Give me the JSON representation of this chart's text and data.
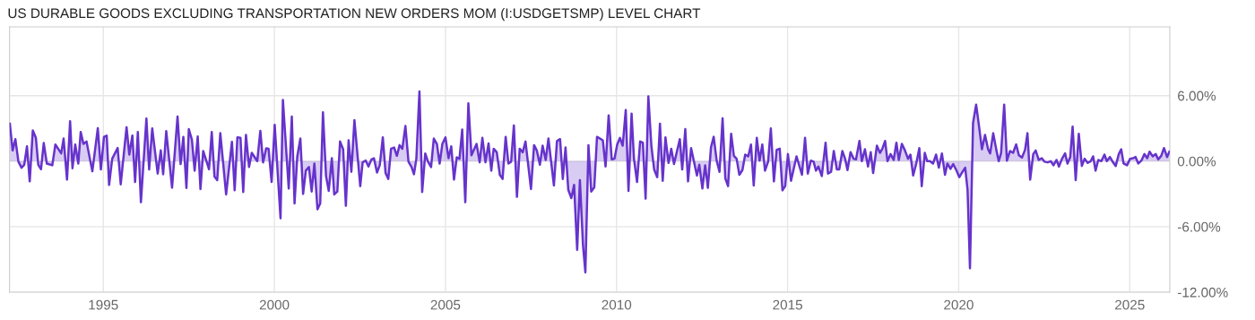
{
  "chart_data": {
    "type": "area",
    "title": "US DURABLE GOODS EXCLUDING TRANSPORTATION NEW ORDERS MOM (I:USDGETSMP) LEVEL CHART",
    "x": [
      1992.27,
      1992.35,
      1992.43,
      1992.52,
      1992.61,
      1992.69,
      1992.77,
      1992.85,
      1992.94,
      1993.03,
      1993.1,
      1993.18,
      1993.26,
      1993.35,
      1993.51,
      1993.6,
      1993.77,
      1993.84,
      1993.94,
      1994.03,
      1994.1,
      1994.18,
      1994.27,
      1994.34,
      1994.42,
      1994.51,
      1994.68,
      1994.84,
      1994.93,
      1995.02,
      1995.1,
      1995.17,
      1995.26,
      1995.42,
      1995.51,
      1995.68,
      1995.76,
      1995.85,
      1995.93,
      1996.01,
      1996.1,
      1996.26,
      1996.34,
      1996.43,
      1996.59,
      1996.68,
      1996.75,
      1996.84,
      1997.01,
      1997.17,
      1997.26,
      1997.34,
      1997.43,
      1997.5,
      1997.59,
      1997.67,
      1997.76,
      1997.84,
      1997.92,
      1998.09,
      1998.17,
      1998.25,
      1998.33,
      1998.42,
      1998.59,
      1998.76,
      1998.84,
      1998.92,
      1999.01,
      1999.09,
      1999.17,
      1999.26,
      1999.34,
      1999.5,
      1999.59,
      1999.67,
      1999.76,
      1999.83,
      1999.92,
      2000.01,
      2000.18,
      2000.25,
      2000.42,
      2000.51,
      2000.59,
      2000.67,
      2000.76,
      2000.84,
      2000.92,
      2001.01,
      2001.09,
      2001.17,
      2001.26,
      2001.34,
      2001.42,
      2001.51,
      2001.59,
      2001.68,
      2001.75,
      2001.84,
      2001.92,
      2002.01,
      2002.09,
      2002.17,
      2002.25,
      2002.34,
      2002.51,
      2002.58,
      2002.67,
      2002.75,
      2002.84,
      2002.91,
      2003.0,
      2003.08,
      2003.17,
      2003.25,
      2003.33,
      2003.41,
      2003.5,
      2003.58,
      2003.66,
      2003.74,
      2003.83,
      2003.92,
      2004.01,
      2004.08,
      2004.15,
      2004.24,
      2004.32,
      2004.41,
      2004.49,
      2004.58,
      2004.66,
      2004.75,
      2004.83,
      2004.91,
      2005.0,
      2005.09,
      2005.17,
      2005.25,
      2005.33,
      2005.41,
      2005.49,
      2005.58,
      2005.67,
      2005.76,
      2005.91,
      2006.0,
      2006.08,
      2006.17,
      2006.26,
      2006.34,
      2006.41,
      2006.5,
      2006.59,
      2006.67,
      2006.76,
      2006.84,
      2006.92,
      2007.0,
      2007.09,
      2007.17,
      2007.26,
      2007.34,
      2007.5,
      2007.59,
      2007.67,
      2007.76,
      2007.84,
      2007.93,
      2008.01,
      2008.17,
      2008.26,
      2008.35,
      2008.43,
      2008.51,
      2008.59,
      2008.68,
      2008.76,
      2008.85,
      2008.93,
      2009.02,
      2009.09,
      2009.18,
      2009.26,
      2009.35,
      2009.43,
      2009.6,
      2009.68,
      2009.77,
      2009.86,
      2009.94,
      2010.02,
      2010.1,
      2010.18,
      2010.27,
      2010.35,
      2010.44,
      2010.51,
      2010.6,
      2010.69,
      2010.77,
      2010.85,
      2010.93,
      2011.02,
      2011.1,
      2011.19,
      2011.27,
      2011.35,
      2011.43,
      2011.52,
      2011.6,
      2011.68,
      2011.85,
      2011.92,
      2012.01,
      2012.09,
      2012.18,
      2012.35,
      2012.42,
      2012.51,
      2012.59,
      2012.67,
      2012.76,
      2012.84,
      2012.93,
      2013.01,
      2013.1,
      2013.18,
      2013.26,
      2013.35,
      2013.43,
      2013.51,
      2013.59,
      2013.68,
      2013.76,
      2013.85,
      2013.93,
      2014.01,
      2014.1,
      2014.18,
      2014.26,
      2014.34,
      2014.43,
      2014.51,
      2014.6,
      2014.68,
      2014.77,
      2014.85,
      2014.93,
      2015.01,
      2015.1,
      2015.26,
      2015.42,
      2015.51,
      2015.59,
      2015.68,
      2015.76,
      2015.83,
      2015.9,
      2016.0,
      2016.11,
      2016.18,
      2016.27,
      2016.35,
      2016.44,
      2016.51,
      2016.6,
      2016.68,
      2016.75,
      2016.84,
      2016.93,
      2017.0,
      2017.1,
      2017.17,
      2017.26,
      2017.35,
      2017.43,
      2017.5,
      2017.61,
      2017.7,
      2017.77,
      2017.85,
      2017.92,
      2018.01,
      2018.1,
      2018.18,
      2018.25,
      2018.34,
      2018.43,
      2018.52,
      2018.59,
      2018.67,
      2018.76,
      2018.85,
      2018.92,
      2019.01,
      2019.08,
      2019.16,
      2019.25,
      2019.34,
      2019.42,
      2019.51,
      2019.6,
      2019.67,
      2019.76,
      2019.84,
      2019.93,
      2020.02,
      2020.1,
      2020.19,
      2020.26,
      2020.33,
      2020.42,
      2020.51,
      2020.59,
      2020.68,
      2020.77,
      2020.86,
      2020.92,
      2021.01,
      2021.1,
      2021.17,
      2021.24,
      2021.33,
      2021.41,
      2021.5,
      2021.59,
      2021.68,
      2021.76,
      2021.85,
      2021.94,
      2022.01,
      2022.09,
      2022.18,
      2022.25,
      2022.34,
      2022.43,
      2022.51,
      2022.6,
      2022.69,
      2022.77,
      2022.86,
      2022.93,
      2023.02,
      2023.11,
      2023.18,
      2023.26,
      2023.33,
      2023.42,
      2023.51,
      2023.6,
      2023.68,
      2023.77,
      2023.86,
      2023.93,
      2024.0,
      2024.08,
      2024.17,
      2024.26,
      2024.33,
      2024.42,
      2024.5,
      2024.59,
      2024.68,
      2024.75,
      2024.82,
      2024.92,
      2025.01,
      2025.1,
      2025.17,
      2025.25,
      2025.34,
      2025.43,
      2025.51,
      2025.58,
      2025.67,
      2025.76,
      2025.83,
      2025.92,
      2026.0,
      2026.09,
      2026.16
    ],
    "values": [
      3.43,
      0.98,
      2.02,
      -0.05,
      -0.6,
      -0.33,
      1.36,
      -1.85,
      2.81,
      2.13,
      -0.33,
      -0.74,
      1.66,
      -0.22,
      -0.38,
      1.53,
      0.71,
      2.07,
      -1.69,
      3.65,
      -0.65,
      1.53,
      -0.22,
      2.67,
      1.58,
      1.8,
      -0.93,
      3.02,
      -0.76,
      2.23,
      2.34,
      -2.18,
      0.22,
      1.2,
      -2.13,
      3.11,
      0.6,
      2.34,
      -1.91,
      2.67,
      -3.76,
      3.9,
      -0.76,
      3.0,
      -1.14,
      0.98,
      -1.2,
      2.75,
      -2.43,
      4.09,
      -0.27,
      2.23,
      -2.45,
      2.94,
      1.96,
      -0.87,
      2.26,
      -2.56,
      0.93,
      -0.74,
      2.67,
      -1.42,
      -1.74,
      2.56,
      -3.05,
      1.77,
      -2.67,
      2.18,
      2.13,
      -2.83,
      2.4,
      -0.54,
      0.76,
      0,
      2.78,
      -0.11,
      1.17,
      1.14,
      -1.91,
      3.32,
      -5.23,
      5.61,
      -2.51,
      4.09,
      -3.87,
      0.44,
      2.07,
      -3.0,
      -0.87,
      -0.54,
      -2.78,
      -0.22,
      -4.41,
      -3.87,
      4.47,
      -1.36,
      -2.72,
      0.27,
      -3.05,
      -2.78,
      1.8,
      1.09,
      -4.09,
      1.91,
      -0.98,
      3.76,
      -2.29,
      -0.11,
      0.05,
      -0.49,
      0.16,
      0.27,
      -1.04,
      -0.38,
      2.18,
      -1.09,
      -1.63,
      1.14,
      1.25,
      0.49,
      1.47,
      1.14,
      3.22,
      -0.05,
      -0.54,
      -1.2,
      0.22,
      6.38,
      -2.83,
      0.71,
      -0.05,
      -0.54,
      2.07,
      1.58,
      -0.22,
      1.58,
      2.18,
      0.27,
      1.36,
      -1.69,
      0.35,
      0.22,
      2.89,
      -3.76,
      5.29,
      0.54,
      1.58,
      -0.11,
      2.13,
      -0.11,
      1.63,
      -0.87,
      1.14,
      0.82,
      -1.25,
      -1.63,
      2.23,
      -0.22,
      -0.05,
      3.27,
      -3.27,
      1.14,
      0.82,
      1.8,
      -2.56,
      1.47,
      0.98,
      -0.33,
      1.42,
      0.11,
      2.07,
      -2.23,
      1.85,
      2.02,
      -1.63,
      1.25,
      -2.62,
      -3.38,
      -2.18,
      -8.12,
      -1.74,
      -7.68,
      -10.19,
      1.47,
      -2.78,
      -2.4,
      2.23,
      1.91,
      -0.49,
      4.2,
      0.16,
      0.22,
      1.53,
      2.13,
      1.42,
      4.69,
      -2.72,
      4.36,
      0.22,
      -1.91,
      1.8,
      1.69,
      -3.43,
      5.94,
      1.36,
      -0.76,
      -1.47,
      3.43,
      -1.8,
      2.18,
      -0.16,
      1.14,
      -0.27,
      2.02,
      -0.76,
      2.94,
      -1.85,
      1.2,
      -1.31,
      -0.33,
      -2.51,
      -0.38,
      -2.45,
      1.25,
      2.23,
      0,
      -0.98,
      3.92,
      -1.58,
      -2.29,
      2.51,
      0.49,
      0.22,
      -1.25,
      -0.82,
      0.6,
      0.44,
      1.53,
      -2.23,
      2.13,
      0.05,
      1.53,
      -0.87,
      -0.05,
      3.0,
      -1.85,
      1.04,
      1.14,
      -2.67,
      -2.29,
      0.65,
      -1.8,
      0.44,
      -1.25,
      2.13,
      -1.14,
      0.05,
      -0.05,
      -0.87,
      -0.49,
      -1.36,
      1.69,
      -1.14,
      -0.98,
      0.93,
      -0.76,
      -0.76,
      0.93,
      0.22,
      -0.82,
      0.82,
      0.22,
      0.16,
      1.85,
      0,
      1.09,
      -0.49,
      0.82,
      -1.09,
      1.42,
      0.76,
      1.14,
      1.85,
      0,
      0.65,
      0.11,
      1.69,
      0.11,
      1.58,
      0.98,
      0.22,
      0.6,
      -1.31,
      -0.22,
      1.2,
      -2.29,
      0.76,
      0,
      0,
      -0.22,
      0.6,
      -0.6,
      0.71,
      -1.25,
      -0.22,
      -0.71,
      -0.27,
      -0.82,
      -1.47,
      -1.04,
      -0.6,
      -2.64,
      -9.81,
      3.49,
      5.18,
      3.32,
      1.09,
      2.4,
      1.09,
      0.71,
      2.56,
      1.04,
      0,
      0.76,
      5.18,
      0.05,
      0.93,
      0.76,
      1.53,
      0.54,
      0.33,
      1.04,
      2.56,
      -1.69,
      0.65,
      0.98,
      0.11,
      0.27,
      -0.05,
      -0.11,
      0,
      -0.38,
      0.11,
      -0.49,
      0.22,
      0.71,
      -0.22,
      0.38,
      3.16,
      -1.74,
      2.51,
      -0.44,
      0.22,
      -0.16,
      0,
      0.44,
      -0.87,
      0.11,
      0,
      0.6,
      0,
      0.38,
      -0.05,
      -0.44,
      0.65,
      1.09,
      -0.22,
      -0.38,
      0.22,
      0.27,
      0.38,
      -0.22,
      0.05,
      0.65,
      0.27,
      0.87,
      0.44,
      0.65,
      0.16,
      0.49,
      1.2,
      0.38,
      0.87
    ],
    "color": "#6633cc",
    "xlim": [
      1992.26,
      2026.17
    ],
    "xticks": [
      1995,
      2000,
      2005,
      2010,
      2015,
      2020,
      2025
    ],
    "ylim": [
      -12,
      12.3
    ],
    "yticks": [
      {
        "value": -12,
        "label": "-12.00%"
      },
      {
        "value": -6,
        "label": "-6.00%"
      },
      {
        "value": 0,
        "label": "0.00%"
      },
      {
        "value": 6,
        "label": "6.00%"
      }
    ],
    "grid": true,
    "legend": false
  }
}
